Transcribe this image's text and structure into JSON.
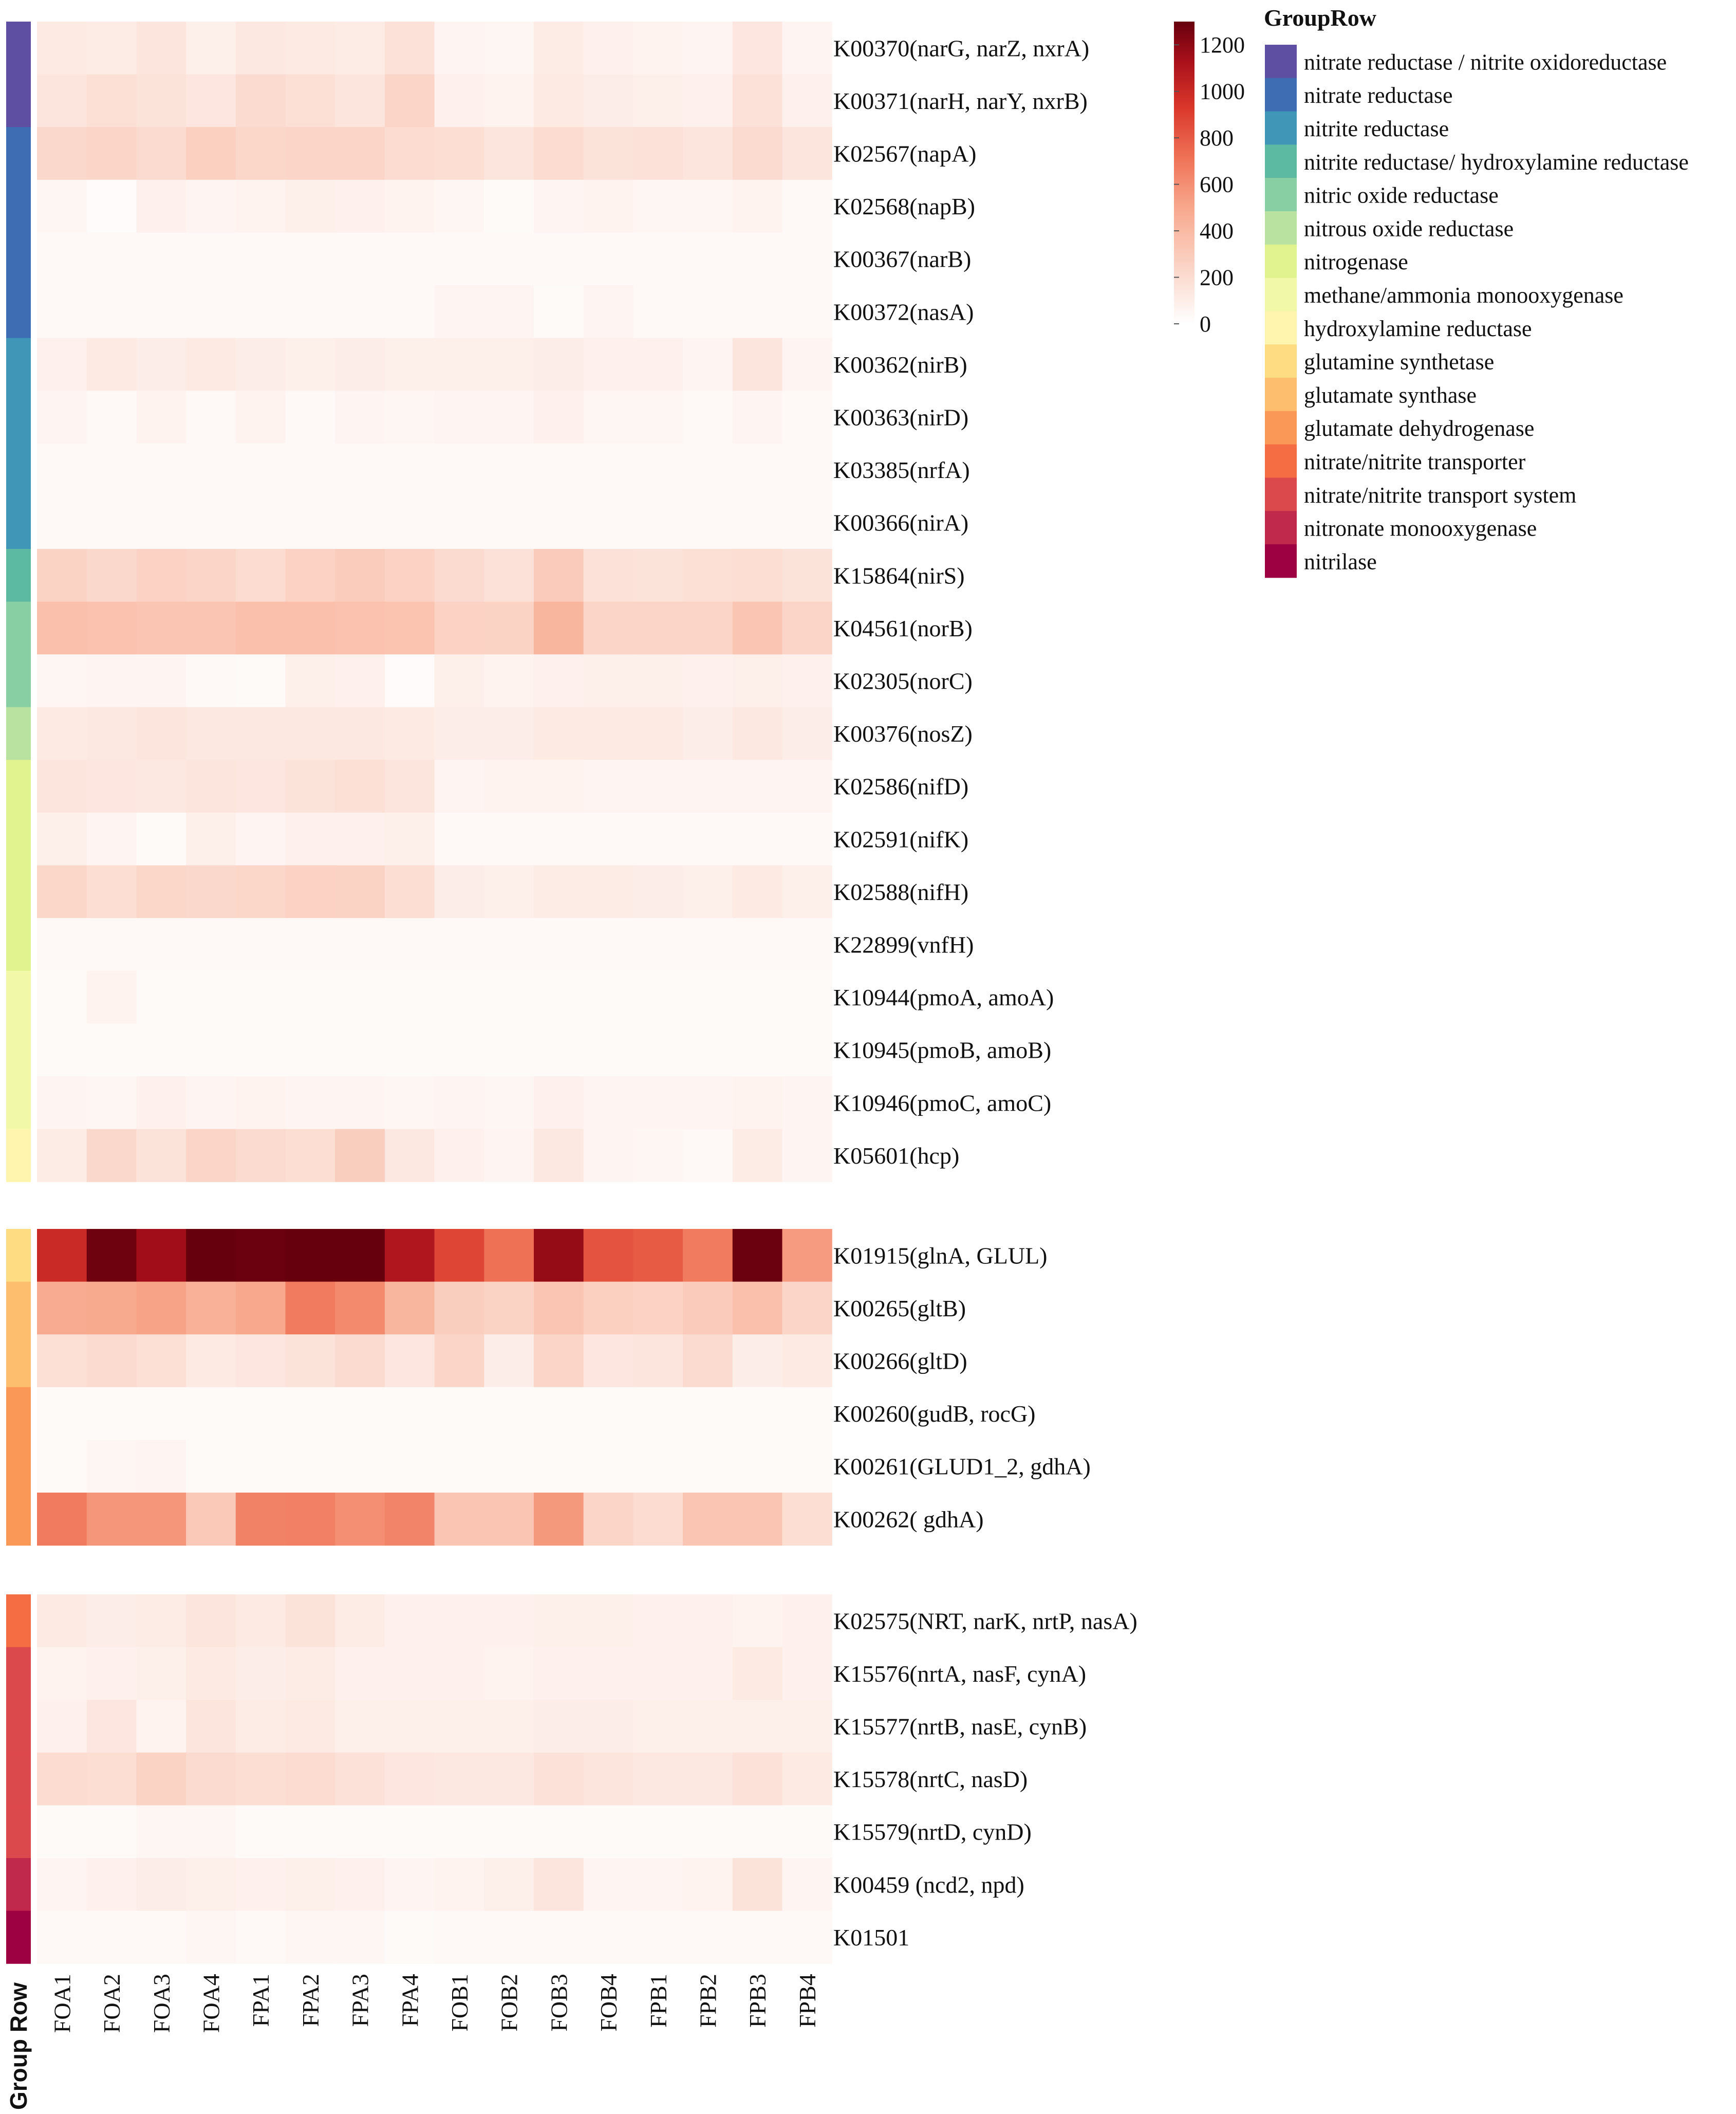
{
  "chart_data": {
    "type": "heatmap",
    "columns": [
      "FOA1",
      "FOA2",
      "FOA3",
      "FOA4",
      "FPA1",
      "FPA2",
      "FPA3",
      "FPA4",
      "FOB1",
      "FOB2",
      "FOB3",
      "FOB4",
      "FPB1",
      "FPB2",
      "FPB3",
      "FPB4"
    ],
    "row_axis_label": "Group Row",
    "colorbar": {
      "min": 0,
      "max": 1300,
      "ticks": [
        0,
        200,
        400,
        600,
        800,
        1000,
        1200
      ]
    },
    "legend_title": "GroupRow",
    "groups": [
      {
        "name": "nitrate reductase / nitrite oxidoreductase",
        "color": "#5E4FA2"
      },
      {
        "name": "nitrate reductase",
        "color": "#3F6DB3"
      },
      {
        "name": "nitrite reductase",
        "color": "#3F96B7"
      },
      {
        "name": "nitrite reductase/ hydroxylamine reductase",
        "color": "#5DBAA2"
      },
      {
        "name": "nitric oxide reductase",
        "color": "#88CFA4"
      },
      {
        "name": "nitrous oxide reductase",
        "color": "#B9E2A0"
      },
      {
        "name": "nitrogenase",
        "color": "#E1F38E"
      },
      {
        "name": "methane/ammonia monooxygenase",
        "color": "#F1F9A9"
      },
      {
        "name": "hydroxylamine reductase",
        "color": "#FFF5AE"
      },
      {
        "name": "glutamine synthetase",
        "color": "#FEDC81"
      },
      {
        "name": "glutamate synthase",
        "color": "#FDBE6E"
      },
      {
        "name": "glutamate dehydrogenase",
        "color": "#FA9857"
      },
      {
        "name": "nitrate/nitrite transporter",
        "color": "#F46D43"
      },
      {
        "name": "nitrate/nitrite transport system",
        "color": "#DC494C"
      },
      {
        "name": "nitronate monooxygenase",
        "color": "#C1294C"
      },
      {
        "name": "nitrilase",
        "color": "#9E0142"
      }
    ],
    "blocks": [
      {
        "rows": [
          {
            "label": "K00370(narG, narZ, nxrA)",
            "group": 0,
            "values": [
              120,
              110,
              150,
              90,
              130,
              120,
              110,
              170,
              60,
              50,
              110,
              80,
              70,
              60,
              140,
              60
            ]
          },
          {
            "label": "K00371(narH, narY, nxrB)",
            "group": 0,
            "values": [
              150,
              180,
              160,
              140,
              210,
              180,
              150,
              240,
              80,
              70,
              120,
              100,
              90,
              80,
              170,
              80
            ]
          },
          {
            "label": "K02567(napA)",
            "group": 1,
            "values": [
              220,
              240,
              210,
              270,
              230,
              240,
              240,
              200,
              190,
              150,
              200,
              160,
              170,
              150,
              210,
              150
            ]
          },
          {
            "label": "K02568(napB)",
            "group": 1,
            "values": [
              50,
              20,
              80,
              60,
              70,
              90,
              80,
              70,
              50,
              30,
              60,
              70,
              50,
              50,
              70,
              40
            ]
          },
          {
            "label": "K00367(narB)",
            "group": 1,
            "values": [
              40,
              40,
              40,
              40,
              40,
              40,
              40,
              40,
              40,
              40,
              40,
              40,
              40,
              40,
              40,
              40
            ]
          },
          {
            "label": "K00372(nasA)",
            "group": 1,
            "values": [
              40,
              40,
              40,
              40,
              40,
              40,
              40,
              40,
              60,
              60,
              30,
              60,
              40,
              40,
              40,
              40
            ]
          },
          {
            "label": "K00362(nirB)",
            "group": 2,
            "values": [
              80,
              120,
              100,
              120,
              100,
              90,
              100,
              90,
              90,
              90,
              100,
              80,
              80,
              60,
              150,
              60
            ]
          },
          {
            "label": "K00363(nirD)",
            "group": 2,
            "values": [
              60,
              40,
              70,
              40,
              70,
              40,
              60,
              50,
              60,
              60,
              80,
              50,
              50,
              40,
              60,
              40
            ]
          },
          {
            "label": "K03385(nrfA)",
            "group": 2,
            "values": [
              40,
              40,
              40,
              40,
              40,
              40,
              40,
              40,
              40,
              40,
              40,
              40,
              40,
              40,
              40,
              40
            ]
          },
          {
            "label": "K00366(nirA)",
            "group": 2,
            "values": [
              40,
              40,
              40,
              40,
              40,
              40,
              40,
              40,
              40,
              40,
              40,
              40,
              40,
              40,
              40,
              40
            ]
          },
          {
            "label": "K15864(nirS)",
            "group": 3,
            "values": [
              250,
              220,
              260,
              240,
              200,
              260,
              290,
              260,
              210,
              170,
              300,
              170,
              160,
              180,
              190,
              160
            ]
          },
          {
            "label": "K04561(norB)",
            "group": 4,
            "values": [
              360,
              350,
              330,
              330,
              360,
              360,
              350,
              340,
              260,
              250,
              420,
              240,
              240,
              240,
              330,
              240
            ]
          },
          {
            "label": "K02305(norC)",
            "group": 4,
            "values": [
              50,
              60,
              60,
              40,
              30,
              90,
              80,
              20,
              90,
              70,
              80,
              90,
              90,
              80,
              90,
              80
            ]
          },
          {
            "label": "K00376(nosZ)",
            "group": 5,
            "values": [
              120,
              130,
              150,
              130,
              130,
              130,
              130,
              120,
              100,
              100,
              120,
              120,
              120,
              100,
              130,
              100
            ]
          },
          {
            "label": "K02586(nifD)",
            "group": 6,
            "values": [
              150,
              140,
              130,
              150,
              140,
              160,
              180,
              150,
              60,
              70,
              70,
              60,
              60,
              60,
              60,
              60
            ]
          },
          {
            "label": "K02591(nifK)",
            "group": 6,
            "values": [
              90,
              60,
              30,
              90,
              60,
              80,
              80,
              90,
              40,
              40,
              40,
              40,
              40,
              40,
              40,
              40
            ]
          },
          {
            "label": "K02588(nifH)",
            "group": 6,
            "values": [
              230,
              190,
              230,
              220,
              230,
              260,
              250,
              190,
              100,
              90,
              110,
              110,
              100,
              90,
              120,
              90
            ]
          },
          {
            "label": "K22899(vnfH)",
            "group": 6,
            "values": [
              40,
              40,
              40,
              40,
              40,
              40,
              40,
              40,
              40,
              40,
              40,
              40,
              40,
              40,
              40,
              40
            ]
          },
          {
            "label": "K10944(pmoA, amoA)",
            "group": 7,
            "values": [
              30,
              70,
              30,
              30,
              30,
              30,
              30,
              30,
              30,
              30,
              30,
              30,
              30,
              30,
              30,
              30
            ]
          },
          {
            "label": "K10945(pmoB, amoB)",
            "group": 7,
            "values": [
              30,
              30,
              30,
              30,
              30,
              30,
              30,
              30,
              30,
              30,
              30,
              30,
              30,
              30,
              30,
              30
            ]
          },
          {
            "label": "K10946(pmoC, amoC)",
            "group": 7,
            "values": [
              60,
              50,
              80,
              60,
              70,
              60,
              60,
              50,
              60,
              50,
              80,
              60,
              60,
              60,
              70,
              60
            ]
          },
          {
            "label": "K05601(hcp)",
            "group": 8,
            "values": [
              110,
              220,
              160,
              240,
              210,
              190,
              280,
              130,
              80,
              60,
              130,
              60,
              50,
              40,
              110,
              60
            ]
          }
        ]
      },
      {
        "rows": [
          {
            "label": "K01915(glnA, GLUL)",
            "group": 9,
            "values": [
              1000,
              1280,
              1150,
              1300,
              1290,
              1300,
              1300,
              1100,
              880,
              720,
              1180,
              830,
              800,
              680,
              1290,
              550
            ]
          },
          {
            "label": "K00265(gltB)",
            "group": 10,
            "values": [
              480,
              490,
              520,
              450,
              500,
              680,
              620,
              420,
              280,
              250,
              330,
              270,
              260,
              300,
              360,
              240
            ]
          },
          {
            "label": "K00266(gltD)",
            "group": 10,
            "values": [
              180,
              210,
              180,
              120,
              140,
              160,
              210,
              140,
              240,
              100,
              240,
              140,
              150,
              210,
              100,
              120
            ]
          },
          {
            "label": "K00260(gudB, rocG)",
            "group": 11,
            "values": [
              30,
              30,
              30,
              30,
              30,
              30,
              30,
              30,
              30,
              30,
              30,
              30,
              30,
              30,
              30,
              30
            ]
          },
          {
            "label": "K00261(GLUD1_2, gdhA)",
            "group": 11,
            "values": [
              30,
              50,
              60,
              30,
              30,
              30,
              30,
              30,
              30,
              30,
              30,
              30,
              30,
              30,
              30,
              30
            ]
          },
          {
            "label": "K00262( gdhA)",
            "group": 11,
            "values": [
              680,
              570,
              570,
              310,
              650,
              660,
              600,
              640,
              330,
              330,
              560,
              240,
              200,
              330,
              330,
              190
            ]
          }
        ]
      },
      {
        "rows": [
          {
            "label": "K02575(NRT, narK, nrtP, nasA)",
            "group": 12,
            "values": [
              120,
              100,
              110,
              150,
              120,
              160,
              110,
              80,
              80,
              80,
              90,
              90,
              80,
              80,
              70,
              80
            ]
          },
          {
            "label": "K15576(nrtA, nasF, cynA)",
            "group": 13,
            "values": [
              70,
              80,
              90,
              120,
              100,
              110,
              80,
              80,
              80,
              70,
              80,
              80,
              80,
              80,
              120,
              80
            ]
          },
          {
            "label": "K15577(nrtB, nasE, cynB)",
            "group": 13,
            "values": [
              80,
              140,
              70,
              150,
              110,
              120,
              90,
              90,
              90,
              90,
              100,
              100,
              90,
              90,
              90,
              90
            ]
          },
          {
            "label": "K15578(nrtC, nasD)",
            "group": 13,
            "values": [
              200,
              190,
              250,
              210,
              190,
              200,
              170,
              140,
              130,
              130,
              170,
              150,
              130,
              130,
              170,
              120
            ]
          },
          {
            "label": "K15579(nrtD, cynD)",
            "group": 13,
            "values": [
              30,
              30,
              50,
              50,
              30,
              30,
              30,
              30,
              30,
              30,
              30,
              30,
              30,
              30,
              30,
              30
            ]
          },
          {
            "label": "K00459 (ncd2, npd)",
            "group": 14,
            "values": [
              60,
              80,
              100,
              90,
              80,
              90,
              80,
              60,
              70,
              90,
              150,
              60,
              60,
              70,
              160,
              60
            ]
          },
          {
            "label": "K01501",
            "group": 15,
            "values": [
              40,
              40,
              40,
              50,
              40,
              50,
              50,
              30,
              40,
              40,
              40,
              40,
              40,
              40,
              40,
              40
            ]
          }
        ]
      }
    ]
  }
}
